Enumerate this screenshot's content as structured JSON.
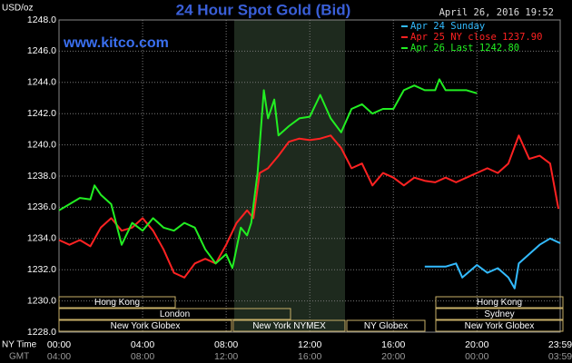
{
  "chart_data": {
    "type": "line",
    "title": "24 Hour Spot Gold (Bid)",
    "site": "www.kitco.com",
    "timestamp": "April 26, 2016 19:52",
    "y_label": "USD/oz",
    "x_label": "NY Time",
    "x2_label": "GMT",
    "ylim": [
      1228,
      1248
    ],
    "yticks": [
      {
        "value": 1228,
        "label": "1228.0"
      },
      {
        "value": 1230,
        "label": "1230.0"
      },
      {
        "value": 1232,
        "label": "1232.0"
      },
      {
        "value": 1234,
        "label": "1234.0"
      },
      {
        "value": 1236,
        "label": "1236.0"
      },
      {
        "value": 1238,
        "label": "1238.0"
      },
      {
        "value": 1240,
        "label": "1240.0"
      },
      {
        "value": 1242,
        "label": "1242.0"
      },
      {
        "value": 1244,
        "label": "1244.0"
      },
      {
        "value": 1246,
        "label": "1246.0"
      },
      {
        "value": 1248,
        "label": "1248.0"
      }
    ],
    "xlim": [
      0,
      23.983
    ],
    "xticks": [
      {
        "value": 0,
        "label": "00:00"
      },
      {
        "value": 4,
        "label": "04:00"
      },
      {
        "value": 8,
        "label": "08:00"
      },
      {
        "value": 12,
        "label": "12:00"
      },
      {
        "value": 16,
        "label": "16:00"
      },
      {
        "value": 20,
        "label": "20:00"
      },
      {
        "value": 23.983,
        "label": "23:59"
      }
    ],
    "gmt_labels": [
      "04:00",
      "08:00",
      "12:00",
      "16:00",
      "20:00",
      "00:00",
      "03:59"
    ],
    "grid": true,
    "sessions": [
      "Hong Kong",
      "London",
      "New York Globex",
      "New York NYMEX",
      "NY Globex",
      "Hong Kong",
      "Sydney",
      "New York Globex"
    ],
    "series": [
      {
        "name": "Apr 24 Sunday",
        "color": "#33bbff",
        "x": [
          17.5,
          18.5,
          19,
          19.3,
          20,
          20.5,
          21,
          21.5,
          21.8,
          22,
          22.5,
          23,
          23.5,
          23.983
        ],
        "values": [
          1232.2,
          1232.2,
          1232.4,
          1231.5,
          1232.3,
          1231.8,
          1232.1,
          1231.5,
          1230.8,
          1232.4,
          1233.0,
          1233.6,
          1234.0,
          1233.7
        ]
      },
      {
        "name": "Apr 25 NY close 1237.90",
        "color": "#ff2222",
        "x": [
          0,
          0.5,
          1,
          1.5,
          2,
          2.5,
          3,
          3.5,
          4,
          4.5,
          5,
          5.5,
          6,
          6.5,
          7,
          7.5,
          8,
          8.5,
          9,
          9.3,
          9.6,
          10,
          10.5,
          11,
          11.5,
          12,
          12.5,
          13,
          13.5,
          14,
          14.5,
          15,
          15.5,
          16,
          16.5,
          17,
          17.5,
          18,
          18.5,
          19,
          19.5,
          20,
          20.5,
          21,
          21.5,
          22,
          22.5,
          23,
          23.5,
          23.9
        ],
        "values": [
          1233.9,
          1233.6,
          1233.9,
          1233.5,
          1234.7,
          1235.3,
          1234.5,
          1234.7,
          1235.3,
          1234.5,
          1233.3,
          1231.8,
          1231.5,
          1232.4,
          1232.7,
          1232.4,
          1233.6,
          1235.0,
          1235.8,
          1235.3,
          1238.2,
          1238.5,
          1239.3,
          1240.2,
          1240.4,
          1240.3,
          1240.4,
          1240.6,
          1239.8,
          1238.5,
          1238.8,
          1237.4,
          1238.2,
          1237.9,
          1237.4,
          1237.9,
          1237.7,
          1237.6,
          1237.9,
          1237.6,
          1237.9,
          1238.2,
          1238.5,
          1238.2,
          1238.8,
          1240.6,
          1239.1,
          1239.3,
          1238.8,
          1235.9
        ]
      },
      {
        "name": "Apr 26 Last 1242.80",
        "color": "#22ee22",
        "x": [
          0,
          0.5,
          1,
          1.5,
          1.7,
          2,
          2.5,
          3,
          3.5,
          4,
          4.5,
          5,
          5.5,
          6,
          6.5,
          7,
          7.5,
          8,
          8.3,
          8.7,
          9,
          9.2,
          9.5,
          9.8,
          10,
          10.3,
          10.5,
          11,
          11.5,
          12,
          12.5,
          13,
          13.5,
          14,
          14.5,
          15,
          15.5,
          16,
          16.5,
          17,
          17.5,
          18,
          18.2,
          18.5,
          19,
          19.5,
          20
        ],
        "values": [
          1235.8,
          1236.2,
          1236.6,
          1236.5,
          1237.4,
          1236.8,
          1236.2,
          1233.6,
          1235.0,
          1234.5,
          1235.3,
          1234.7,
          1234.5,
          1235.0,
          1234.7,
          1233.3,
          1232.4,
          1233.0,
          1232.1,
          1234.7,
          1234.2,
          1235.0,
          1238.2,
          1243.5,
          1241.7,
          1242.9,
          1240.6,
          1241.2,
          1241.7,
          1241.8,
          1243.2,
          1241.7,
          1240.8,
          1242.3,
          1242.6,
          1242.0,
          1242.3,
          1242.3,
          1243.5,
          1243.8,
          1243.5,
          1243.5,
          1244.2,
          1243.5,
          1243.5,
          1243.5,
          1243.3
        ]
      }
    ]
  }
}
